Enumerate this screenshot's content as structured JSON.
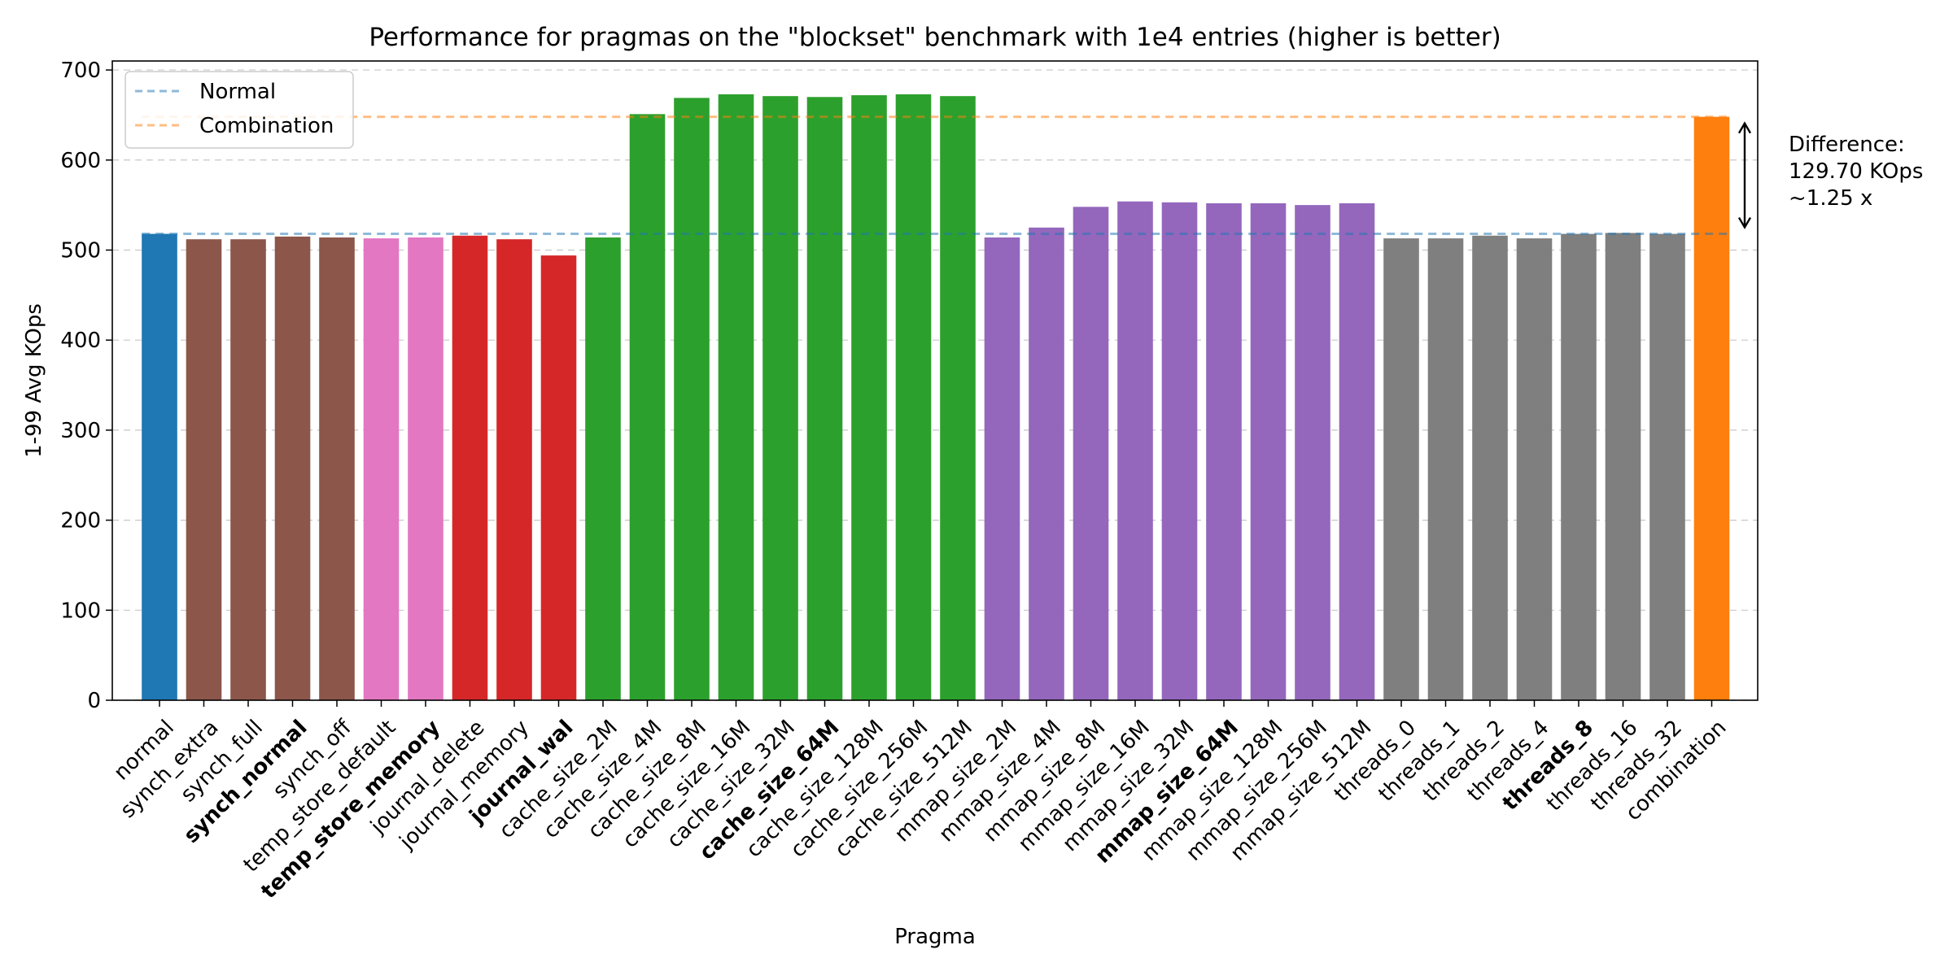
{
  "chart_data": {
    "type": "bar",
    "title": "Performance for pragmas on the \"blockset\" benchmark with 1e4 entries (higher is better)",
    "xlabel": "Pragma",
    "ylabel": "1-99 Avg KOps",
    "ylim": [
      0,
      710
    ],
    "yticks": [
      0,
      100,
      200,
      300,
      400,
      500,
      600,
      700
    ],
    "grid": "horizontal, dashed",
    "legend_position": "top-left",
    "categories": [
      "normal",
      "synch_extra",
      "synch_full",
      "synch_normal",
      "synch_off",
      "temp_store_default",
      "temp_store_memory",
      "journal_delete",
      "journal_memory",
      "journal_wal",
      "cache_size_2M",
      "cache_size_4M",
      "cache_size_8M",
      "cache_size_16M",
      "cache_size_32M",
      "cache_size_64M",
      "cache_size_128M",
      "cache_size_256M",
      "cache_size_512M",
      "mmap_size_2M",
      "mmap_size_4M",
      "mmap_size_8M",
      "mmap_size_16M",
      "mmap_size_32M",
      "mmap_size_64M",
      "mmap_size_128M",
      "mmap_size_256M",
      "mmap_size_512M",
      "threads_0",
      "threads_1",
      "threads_2",
      "threads_4",
      "threads_8",
      "threads_16",
      "threads_32",
      "combination"
    ],
    "values": [
      518,
      512,
      512,
      515,
      514,
      513,
      514,
      516,
      512,
      494,
      514,
      651,
      669,
      673,
      671,
      670,
      672,
      673,
      671,
      514,
      525,
      548,
      554,
      553,
      552,
      552,
      550,
      552,
      513,
      513,
      516,
      513,
      518,
      519,
      518,
      648
    ],
    "bold_categories": [
      "synch_normal",
      "temp_store_memory",
      "journal_wal",
      "cache_size_64M",
      "mmap_size_64M",
      "threads_8"
    ],
    "bar_colors": [
      "#1f77b4",
      "#8c564b",
      "#8c564b",
      "#8c564b",
      "#8c564b",
      "#e377c2",
      "#e377c2",
      "#d62728",
      "#d62728",
      "#d62728",
      "#2ca02c",
      "#2ca02c",
      "#2ca02c",
      "#2ca02c",
      "#2ca02c",
      "#2ca02c",
      "#2ca02c",
      "#2ca02c",
      "#2ca02c",
      "#9467bd",
      "#9467bd",
      "#9467bd",
      "#9467bd",
      "#9467bd",
      "#9467bd",
      "#9467bd",
      "#9467bd",
      "#9467bd",
      "#7f7f7f",
      "#7f7f7f",
      "#7f7f7f",
      "#7f7f7f",
      "#7f7f7f",
      "#7f7f7f",
      "#7f7f7f",
      "#ff7f0e"
    ],
    "reference_lines": [
      {
        "name": "Normal",
        "value": 518,
        "color": "#1f77b4"
      },
      {
        "name": "Combination",
        "value": 648,
        "color": "#ff7f0e"
      }
    ],
    "annotation": {
      "lines": [
        "Difference:",
        "129.70 KOps",
        "~1.25 x"
      ],
      "from": 518,
      "to": 648
    }
  }
}
